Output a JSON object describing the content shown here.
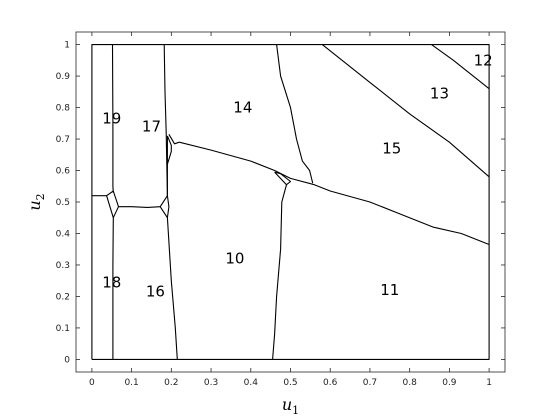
{
  "chart_data": {
    "type": "diagram",
    "xlabel": {
      "var": "u",
      "sub": "1"
    },
    "ylabel": {
      "var": "u",
      "sub": "2"
    },
    "xlim": [
      -0.04,
      1.04
    ],
    "ylim": [
      -0.04,
      1.04
    ],
    "xticks": [
      0,
      0.1,
      0.2,
      0.3,
      0.4,
      0.5,
      0.6,
      0.7,
      0.8,
      0.9,
      1
    ],
    "yticks": [
      0,
      0.1,
      0.2,
      0.3,
      0.4,
      0.5,
      0.6,
      0.7,
      0.8,
      0.9,
      1
    ],
    "xtick_labels": [
      "0",
      "0.1",
      "0.2",
      "0.3",
      "0.4",
      "0.5",
      "0.6",
      "0.7",
      "0.8",
      "0.9",
      "1"
    ],
    "ytick_labels": [
      "0",
      "0.1",
      "0.2",
      "0.3",
      "0.4",
      "0.5",
      "0.6",
      "0.7",
      "0.8",
      "0.9",
      "1"
    ],
    "region_labels": [
      {
        "text": "19",
        "x": 0.05,
        "y": 0.765
      },
      {
        "text": "17",
        "x": 0.15,
        "y": 0.74
      },
      {
        "text": "14",
        "x": 0.38,
        "y": 0.8
      },
      {
        "text": "13",
        "x": 0.875,
        "y": 0.845
      },
      {
        "text": "12",
        "x": 0.985,
        "y": 0.95
      },
      {
        "text": "15",
        "x": 0.755,
        "y": 0.67
      },
      {
        "text": "10",
        "x": 0.36,
        "y": 0.32
      },
      {
        "text": "18",
        "x": 0.05,
        "y": 0.245
      },
      {
        "text": "16",
        "x": 0.16,
        "y": 0.215
      },
      {
        "text": "11",
        "x": 0.75,
        "y": 0.22
      }
    ],
    "boundaries": [
      {
        "name": "frame",
        "points": [
          [
            0,
            0
          ],
          [
            1,
            0
          ],
          [
            1,
            1
          ],
          [
            0,
            1
          ],
          [
            0,
            0
          ]
        ]
      },
      {
        "name": "left-vertical",
        "points": [
          [
            0.052,
            1
          ],
          [
            0.053,
            0.75
          ],
          [
            0.053,
            0.55
          ],
          [
            0.054,
            0.53
          ]
        ]
      },
      {
        "name": "left-vertical-lower",
        "points": [
          [
            0.054,
            0.45
          ],
          [
            0.053,
            0.3
          ],
          [
            0.053,
            0
          ]
        ]
      },
      {
        "name": "left-horizontal-stub",
        "points": [
          [
            0,
            0.52
          ],
          [
            0.037,
            0.52
          ]
        ]
      },
      {
        "name": "left-junction-diamond",
        "points": [
          [
            0.037,
            0.52
          ],
          [
            0.054,
            0.535
          ],
          [
            0.067,
            0.485
          ],
          [
            0.054,
            0.45
          ],
          [
            0.037,
            0.52
          ]
        ]
      },
      {
        "name": "inner-horizontal",
        "points": [
          [
            0.067,
            0.485
          ],
          [
            0.1,
            0.485
          ],
          [
            0.14,
            0.483
          ],
          [
            0.172,
            0.485
          ]
        ]
      },
      {
        "name": "middle-left-junction",
        "points": [
          [
            0.172,
            0.485
          ],
          [
            0.19,
            0.52
          ],
          [
            0.194,
            0.485
          ],
          [
            0.19,
            0.45
          ],
          [
            0.172,
            0.485
          ]
        ]
      },
      {
        "name": "middle-left-vertical-upper",
        "points": [
          [
            0.182,
            1
          ],
          [
            0.184,
            0.85
          ],
          [
            0.187,
            0.72
          ],
          [
            0.19,
            0.52
          ]
        ]
      },
      {
        "name": "middle-left-vertical-lower",
        "points": [
          [
            0.19,
            0.45
          ],
          [
            0.2,
            0.25
          ],
          [
            0.21,
            0.1
          ],
          [
            0.215,
            0
          ]
        ]
      },
      {
        "name": "upper-left-diagonal-junction",
        "points": [
          [
            0.19,
            0.52
          ],
          [
            0.19,
            0.58
          ],
          [
            0.19,
            0.71
          ]
        ]
      },
      {
        "name": "upper-left-shortcut",
        "points": [
          [
            0.19,
            0.71
          ],
          [
            0.2,
            0.68
          ],
          [
            0.2,
            0.66
          ],
          [
            0.19,
            0.62
          ]
        ]
      },
      {
        "name": "upper-junction",
        "points": [
          [
            0.194,
            0.715
          ],
          [
            0.208,
            0.685
          ],
          [
            0.22,
            0.69
          ]
        ]
      },
      {
        "name": "main-descending-line",
        "points": [
          [
            0.22,
            0.69
          ],
          [
            0.3,
            0.665
          ],
          [
            0.4,
            0.63
          ],
          [
            0.46,
            0.6
          ],
          [
            0.5,
            0.575
          ],
          [
            0.56,
            0.555
          ],
          [
            0.6,
            0.535
          ],
          [
            0.7,
            0.5
          ],
          [
            0.78,
            0.46
          ],
          [
            0.86,
            0.42
          ],
          [
            0.93,
            0.4
          ],
          [
            1,
            0.365
          ]
        ]
      },
      {
        "name": "middle-junction",
        "points": [
          [
            0.46,
            0.595
          ],
          [
            0.49,
            0.555
          ],
          [
            0.5,
            0.565
          ],
          [
            0.475,
            0.59
          ],
          [
            0.46,
            0.595
          ]
        ]
      },
      {
        "name": "upper-middle-vertical",
        "points": [
          [
            0.465,
            1
          ],
          [
            0.475,
            0.9
          ],
          [
            0.5,
            0.8
          ],
          [
            0.515,
            0.7
          ],
          [
            0.53,
            0.63
          ],
          [
            0.548,
            0.6
          ],
          [
            0.556,
            0.56
          ]
        ]
      },
      {
        "name": "lower-middle-vertical",
        "points": [
          [
            0.49,
            0.555
          ],
          [
            0.478,
            0.5
          ],
          [
            0.475,
            0.35
          ],
          [
            0.465,
            0.2
          ],
          [
            0.46,
            0.08
          ],
          [
            0.455,
            0
          ]
        ]
      },
      {
        "name": "diagonal-15",
        "points": [
          [
            0.58,
            1
          ],
          [
            0.7,
            0.88
          ],
          [
            0.8,
            0.78
          ],
          [
            0.9,
            0.69
          ],
          [
            1,
            0.58
          ]
        ]
      },
      {
        "name": "diagonal-13",
        "points": [
          [
            0.855,
            1
          ],
          [
            0.91,
            0.95
          ],
          [
            0.96,
            0.9
          ],
          [
            1,
            0.86
          ]
        ]
      }
    ]
  }
}
